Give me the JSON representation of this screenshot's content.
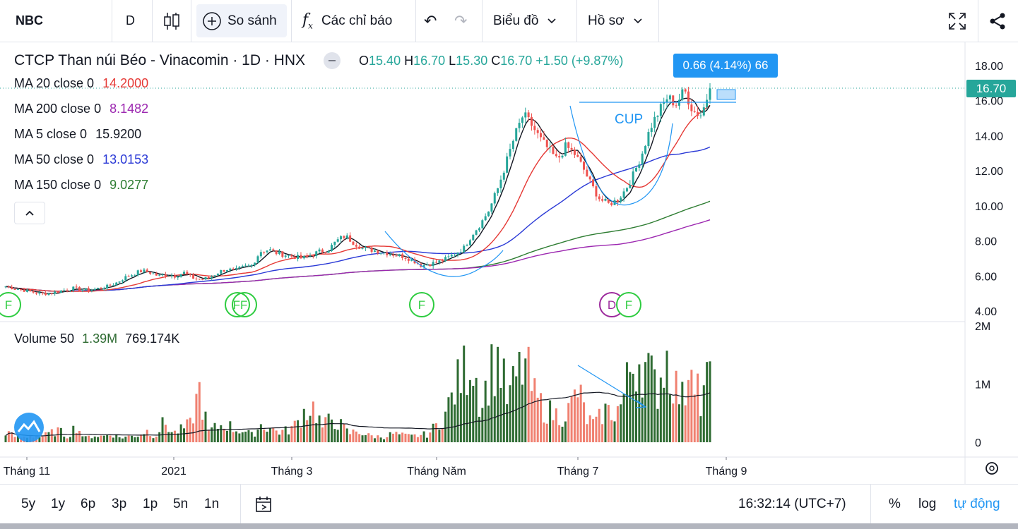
{
  "toolbar": {
    "symbol": "NBC",
    "interval": "D",
    "compare_label": "So sánh",
    "indicators_label": "Các chỉ báo",
    "chart_type_label": "Biểu đồ",
    "profile_label": "Hồ sơ"
  },
  "legend": {
    "title": "CTCP Than núi Béo - Vinacomin · 1D · HNX",
    "ohlc": {
      "o_label": "O",
      "o": "15.40",
      "h_label": "H",
      "h": "16.70",
      "l_label": "L",
      "l": "15.30",
      "c_label": "C",
      "c": "16.70",
      "change": "+1.50 (+9.87%)"
    },
    "ma": [
      {
        "label": "MA 20 close 0",
        "value": "14.2000",
        "color": "#e53935"
      },
      {
        "label": "MA 200 close 0",
        "value": "8.1482",
        "color": "#9c27b0"
      },
      {
        "label": "MA 5 close 0",
        "value": "15.9200",
        "color": "#131722"
      },
      {
        "label": "MA 50 close 0",
        "value": "13.0153",
        "color": "#2a39d6"
      },
      {
        "label": "MA 150 close 0",
        "value": "9.0277",
        "color": "#2e7d32"
      }
    ],
    "volume": {
      "label": "Volume 50",
      "v1": "1.39M",
      "v2": "769.174K"
    }
  },
  "measure_tooltip": "0.66 (4.14%) 66",
  "annotation_cup": "CUP",
  "last_price_label": "16.70",
  "bottombar": {
    "ranges": [
      "5y",
      "1y",
      "6p",
      "3p",
      "1p",
      "5n",
      "1n"
    ],
    "clock": "16:32:14 (UTC+7)",
    "percent": "%",
    "log": "log",
    "auto": "tự động"
  },
  "colors": {
    "up": "#26a69a",
    "down": "#ef5350",
    "vol_up": "#2e6b32",
    "vol_down": "#f08070",
    "accent": "#2196f3"
  },
  "chart_data": {
    "type": "candlestick",
    "y_axis_ticks": [
      "18.00",
      "16.00",
      "14.00",
      "12.00",
      "10.00",
      "8.00",
      "6.00",
      "4.00"
    ],
    "ylim": [
      4,
      18.5
    ],
    "volume_axis_ticks": [
      "2M",
      "1M",
      "0"
    ],
    "x_axis_labels": [
      "Tháng 11",
      "2021",
      "Tháng 3",
      "Tháng Năm",
      "Tháng 7",
      "Tháng 9"
    ],
    "events": [
      "F",
      "FF",
      "F",
      "D",
      "F"
    ],
    "close_path": [
      5.4,
      5.3,
      5.2,
      5.1,
      5.0,
      5.0,
      5.1,
      5.2,
      5.3,
      5.2,
      5.2,
      5.3,
      5.4,
      5.6,
      5.9,
      6.1,
      6.3,
      6.2,
      6.0,
      6.1,
      6.0,
      6.2,
      5.9,
      5.8,
      5.9,
      6.2,
      6.4,
      6.3,
      6.5,
      6.6,
      7.4,
      7.5,
      7.3,
      7.2,
      7.1,
      7.0,
      7.2,
      7.4,
      7.5,
      8.0,
      8.3,
      7.9,
      7.6,
      7.5,
      7.4,
      7.3,
      7.2,
      7.1,
      6.9,
      6.6,
      6.7,
      6.8,
      7.0,
      7.3,
      7.6,
      8.4,
      9.0,
      9.8,
      11.0,
      12.5,
      14.0,
      15.2,
      14.6,
      13.8,
      13.2,
      12.6,
      13.4,
      13.0,
      12.2,
      11.2,
      10.4,
      10.1,
      10.3,
      10.9,
      11.8,
      13.0,
      14.5,
      15.4,
      16.2,
      15.8,
      16.6,
      15.4,
      15.2,
      16.7
    ],
    "volume_path": [
      0.18,
      0.1,
      0.08,
      0.12,
      0.09,
      0.15,
      0.2,
      0.1,
      0.28,
      0.07,
      0.12,
      0.1,
      0.15,
      0.08,
      0.1,
      0.12,
      0.2,
      0.1,
      0.35,
      0.15,
      0.22,
      0.31,
      0.9,
      0.18,
      0.26,
      0.32,
      0.22,
      0.2,
      0.12,
      0.3,
      0.25,
      0.18,
      0.2,
      0.3,
      0.55,
      0.6,
      0.25,
      0.42,
      0.3,
      0.15,
      0.2,
      0.12,
      0.1,
      0.09,
      0.15,
      0.12,
      0.1,
      0.12,
      0.14,
      0.3,
      0.5,
      0.9,
      1.2,
      1.5,
      0.6,
      1.2,
      1.45,
      0.7,
      1.1,
      1.35,
      0.8,
      0.6,
      0.5,
      0.45,
      0.55,
      0.9,
      0.4,
      0.3,
      0.55,
      0.5,
      0.65,
      1.3,
      1.45,
      1.2,
      0.9,
      1.5,
      1.0,
      0.7,
      1.8,
      0.5,
      1.39
    ],
    "volume_ma_path": [
      0.12,
      0.13,
      0.13,
      0.14,
      0.14,
      0.15,
      0.15,
      0.15,
      0.16,
      0.16,
      0.16,
      0.16,
      0.17,
      0.17,
      0.17,
      0.17,
      0.17,
      0.17,
      0.18,
      0.18,
      0.18,
      0.18,
      0.2,
      0.22,
      0.26,
      0.32,
      0.38,
      0.42,
      0.46,
      0.5,
      0.54,
      0.58,
      0.62,
      0.66,
      0.7,
      0.73,
      0.76,
      0.77
    ]
  }
}
